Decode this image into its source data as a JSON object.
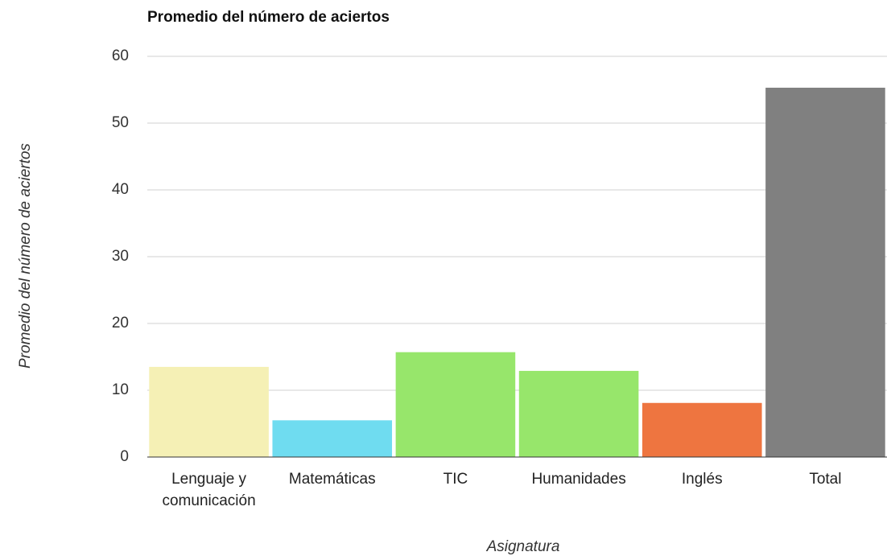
{
  "chart_data": {
    "type": "bar",
    "title": "Promedio del número de aciertos",
    "x_label": "Asignatura",
    "y_label": "Promedio del número de aciertos",
    "categories": [
      "Lenguaje y comunicación",
      "Matemáticas",
      "TIC",
      "Humanidades",
      "Inglés",
      "Total"
    ],
    "values": [
      13.5,
      5.5,
      15.7,
      12.9,
      8.1,
      55.3
    ],
    "colors": [
      "#f5f0b5",
      "#6fdcf0",
      "#97e66b",
      "#97e66b",
      "#ee7540",
      "#808080"
    ],
    "ylim": [
      0,
      60
    ],
    "yticks": [
      0,
      10,
      20,
      30,
      40,
      50,
      60
    ],
    "grid": true
  }
}
